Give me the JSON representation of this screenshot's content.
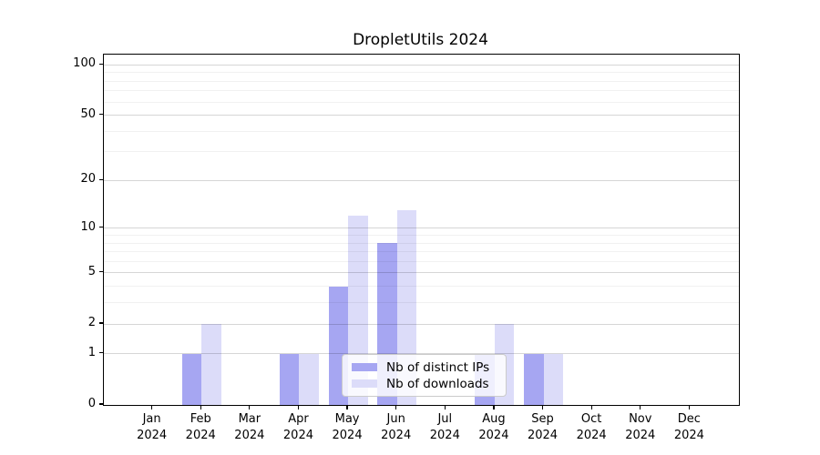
{
  "chart_data": {
    "type": "bar",
    "title": "DropletUtils 2024",
    "xlabel": "",
    "ylabel": "",
    "categories": [
      "Jan 2024",
      "Feb 2024",
      "Mar 2024",
      "Apr 2024",
      "May 2024",
      "Jun 2024",
      "Jul 2024",
      "Aug 2024",
      "Sep 2024",
      "Oct 2024",
      "Nov 2024",
      "Dec 2024"
    ],
    "series": [
      {
        "name": "Nb of distinct IPs",
        "color": "#a6a6f2",
        "values": [
          0,
          1,
          0,
          1,
          4,
          8,
          0,
          1,
          1,
          0,
          0,
          0
        ]
      },
      {
        "name": "Nb of downloads",
        "color": "#dcdcf9",
        "values": [
          0,
          2,
          0,
          1,
          12,
          13,
          0,
          2,
          1,
          0,
          0,
          0
        ]
      }
    ],
    "yaxis": {
      "scale": "log1p",
      "ticks": [
        0,
        1,
        2,
        5,
        10,
        20,
        50,
        100
      ],
      "minor_gridlines": [
        3,
        4,
        6,
        7,
        8,
        9,
        30,
        40,
        60,
        70,
        80,
        90
      ],
      "ylim": [
        0,
        115
      ]
    },
    "legend": {
      "labels": [
        "Nb of distinct IPs",
        "Nb of downloads"
      ],
      "position": "lower center"
    },
    "grid": true
  }
}
